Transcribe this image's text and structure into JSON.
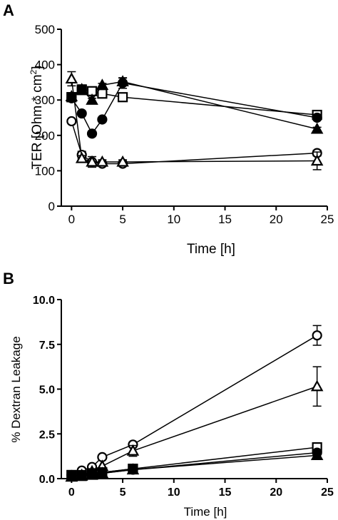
{
  "chart_data": [
    {
      "panel": "A",
      "type": "line",
      "xlabel": "Time [h]",
      "ylabel": "TER [Ohm * cm",
      "ylabel_sup": "2",
      "ylabel_close": "]",
      "xlim": [
        -1,
        25
      ],
      "ylim": [
        0,
        500
      ],
      "xticks": [
        0,
        5,
        10,
        15,
        20,
        25
      ],
      "yticks": [
        0,
        100,
        200,
        300,
        400,
        500
      ],
      "series": [
        {
          "marker": "open-circle",
          "x": [
            0,
            1,
            2,
            3,
            5,
            24
          ],
          "y": [
            240,
            145,
            125,
            120,
            120,
            150
          ],
          "err": [
            0,
            10,
            5,
            5,
            5,
            8
          ]
        },
        {
          "marker": "open-triangle",
          "x": [
            0,
            1,
            2,
            3,
            5,
            24
          ],
          "y": [
            360,
            135,
            125,
            125,
            125,
            128
          ],
          "err": [
            20,
            8,
            15,
            6,
            6,
            25
          ]
        },
        {
          "marker": "open-square",
          "x": [
            0,
            1,
            2,
            3,
            5,
            24
          ],
          "y": [
            308,
            330,
            325,
            318,
            308,
            258
          ],
          "err": [
            5,
            5,
            5,
            5,
            5,
            5
          ]
        },
        {
          "marker": "filled-circle",
          "x": [
            0,
            1,
            2,
            3,
            5,
            24
          ],
          "y": [
            305,
            262,
            205,
            245,
            348,
            250
          ],
          "err": [
            5,
            5,
            5,
            5,
            15,
            5
          ]
        },
        {
          "marker": "filled-triangle",
          "x": [
            0,
            1,
            2,
            3,
            5,
            24
          ],
          "y": [
            310,
            330,
            300,
            342,
            352,
            218
          ],
          "err": [
            5,
            5,
            5,
            5,
            10,
            5
          ]
        },
        {
          "marker": "filled-square",
          "x": [
            0,
            1
          ],
          "y": [
            308,
            328
          ],
          "err": [
            0,
            0
          ]
        }
      ]
    },
    {
      "panel": "B",
      "type": "line",
      "xlabel": "Time [h]",
      "ylabel": "% Dextran  Leakage",
      "xlim": [
        -1,
        25
      ],
      "ylim": [
        0,
        10
      ],
      "xticks": [
        0,
        5,
        10,
        15,
        20,
        25
      ],
      "yticks": [
        0.0,
        2.5,
        5.0,
        7.5,
        10.0
      ],
      "ytick_labels": [
        "0.0",
        "2.5",
        "5.0",
        "7.5",
        "10.0"
      ],
      "series": [
        {
          "marker": "open-circle",
          "x": [
            0,
            1,
            2,
            3,
            6,
            24
          ],
          "y": [
            0.2,
            0.45,
            0.65,
            1.2,
            1.9,
            8.0
          ],
          "err": [
            0,
            0,
            0,
            0,
            0,
            0.55
          ]
        },
        {
          "marker": "open-triangle",
          "x": [
            0,
            1,
            2,
            3,
            6,
            24
          ],
          "y": [
            0.1,
            0.2,
            0.4,
            0.7,
            1.55,
            5.15
          ],
          "err": [
            0,
            0,
            0,
            0,
            0.3,
            1.1
          ]
        },
        {
          "marker": "open-square",
          "x": [
            0,
            1,
            2,
            3,
            6,
            24
          ],
          "y": [
            0.2,
            0.2,
            0.3,
            0.35,
            0.55,
            1.75
          ],
          "err": [
            0,
            0,
            0,
            0,
            0,
            0
          ]
        },
        {
          "marker": "filled-circle",
          "x": [
            0,
            1,
            2,
            3,
            6,
            24
          ],
          "y": [
            0.2,
            0.2,
            0.25,
            0.3,
            0.5,
            1.45
          ],
          "err": [
            0,
            0,
            0,
            0,
            0,
            0
          ]
        },
        {
          "marker": "filled-triangle",
          "x": [
            0,
            1,
            2,
            3,
            6,
            24
          ],
          "y": [
            0.1,
            0.15,
            0.2,
            0.3,
            0.5,
            1.3
          ],
          "err": [
            0,
            0,
            0,
            0,
            0,
            0
          ]
        },
        {
          "marker": "filled-square",
          "x": [
            0,
            1,
            2,
            3,
            6
          ],
          "y": [
            0.2,
            0.15,
            0.25,
            0.35,
            0.55
          ],
          "err": [
            0,
            0,
            0,
            0,
            0
          ]
        }
      ]
    }
  ]
}
